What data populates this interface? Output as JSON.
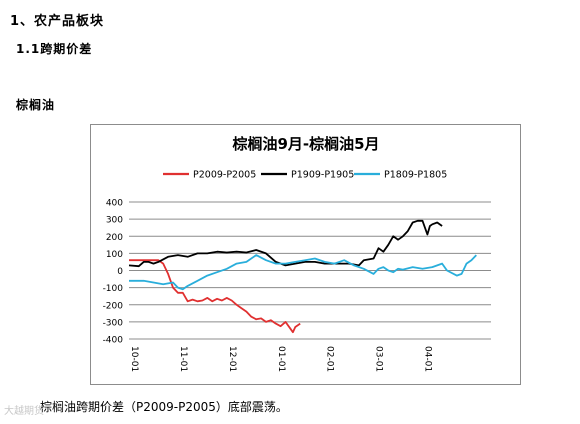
{
  "document": {
    "section_title": "1、农产品板块",
    "subsection_title": "1.1跨期价差",
    "product_heading": "棕榈油",
    "caption": "棕榈油跨期价差（P2009-P2005）底部震荡。",
    "watermark": "大越期货"
  },
  "chart_data": {
    "type": "line",
    "title": "棕榈油9月-棕榈油5月",
    "xlabel": "",
    "ylabel": "",
    "ylim": [
      -400,
      400
    ],
    "yticks": [
      400,
      300,
      200,
      100,
      0,
      -100,
      -200,
      -300,
      -400
    ],
    "x_range": [
      0,
      7.4
    ],
    "xtick_labels": [
      {
        "label": "10-01",
        "x": 0
      },
      {
        "label": "11-01",
        "x": 1
      },
      {
        "label": "12-01",
        "x": 2
      },
      {
        "label": "01-01",
        "x": 3
      },
      {
        "label": "02-01",
        "x": 4
      },
      {
        "label": "03-01",
        "x": 5
      },
      {
        "label": "04-01",
        "x": 6
      }
    ],
    "grid": true,
    "legend_position": "top",
    "series": [
      {
        "name": "P2009-P2005",
        "color": "#e03030",
        "points": [
          [
            0,
            60
          ],
          [
            0.3,
            60
          ],
          [
            0.6,
            60
          ],
          [
            0.7,
            40
          ],
          [
            0.8,
            -20
          ],
          [
            0.9,
            -100
          ],
          [
            1.0,
            -130
          ],
          [
            1.1,
            -130
          ],
          [
            1.2,
            -180
          ],
          [
            1.3,
            -170
          ],
          [
            1.4,
            -180
          ],
          [
            1.5,
            -175
          ],
          [
            1.6,
            -160
          ],
          [
            1.7,
            -180
          ],
          [
            1.8,
            -165
          ],
          [
            1.9,
            -175
          ],
          [
            2.0,
            -160
          ],
          [
            2.1,
            -175
          ],
          [
            2.2,
            -200
          ],
          [
            2.3,
            -220
          ],
          [
            2.4,
            -240
          ],
          [
            2.5,
            -270
          ],
          [
            2.6,
            -285
          ],
          [
            2.7,
            -280
          ],
          [
            2.8,
            -300
          ],
          [
            2.9,
            -290
          ],
          [
            3.0,
            -310
          ],
          [
            3.1,
            -325
          ],
          [
            3.2,
            -300
          ],
          [
            3.3,
            -340
          ],
          [
            3.35,
            -360
          ],
          [
            3.4,
            -330
          ],
          [
            3.5,
            -310
          ]
        ]
      },
      {
        "name": "P1909-P1905",
        "color": "#000000",
        "points": [
          [
            0,
            30
          ],
          [
            0.2,
            25
          ],
          [
            0.3,
            50
          ],
          [
            0.4,
            50
          ],
          [
            0.5,
            40
          ],
          [
            0.6,
            50
          ],
          [
            0.8,
            80
          ],
          [
            1.0,
            90
          ],
          [
            1.2,
            80
          ],
          [
            1.4,
            100
          ],
          [
            1.6,
            100
          ],
          [
            1.8,
            110
          ],
          [
            2.0,
            105
          ],
          [
            2.2,
            110
          ],
          [
            2.4,
            105
          ],
          [
            2.6,
            120
          ],
          [
            2.8,
            100
          ],
          [
            3.0,
            50
          ],
          [
            3.2,
            30
          ],
          [
            3.4,
            40
          ],
          [
            3.6,
            50
          ],
          [
            3.8,
            50
          ],
          [
            4.0,
            40
          ],
          [
            4.2,
            40
          ],
          [
            4.5,
            40
          ],
          [
            4.7,
            30
          ],
          [
            4.8,
            60
          ],
          [
            5.0,
            70
          ],
          [
            5.1,
            130
          ],
          [
            5.2,
            110
          ],
          [
            5.3,
            150
          ],
          [
            5.4,
            200
          ],
          [
            5.5,
            180
          ],
          [
            5.6,
            200
          ],
          [
            5.7,
            230
          ],
          [
            5.8,
            280
          ],
          [
            5.9,
            290
          ],
          [
            6.0,
            290
          ],
          [
            6.1,
            210
          ],
          [
            6.15,
            260
          ],
          [
            6.2,
            270
          ],
          [
            6.3,
            280
          ],
          [
            6.4,
            260
          ]
        ]
      },
      {
        "name": "P1809-P1805",
        "color": "#29aedb",
        "points": [
          [
            0,
            -60
          ],
          [
            0.3,
            -60
          ],
          [
            0.5,
            -70
          ],
          [
            0.7,
            -80
          ],
          [
            0.9,
            -70
          ],
          [
            1.0,
            -100
          ],
          [
            1.1,
            -110
          ],
          [
            1.2,
            -90
          ],
          [
            1.4,
            -60
          ],
          [
            1.6,
            -30
          ],
          [
            1.8,
            -10
          ],
          [
            2.0,
            10
          ],
          [
            2.2,
            40
          ],
          [
            2.4,
            50
          ],
          [
            2.6,
            90
          ],
          [
            2.8,
            60
          ],
          [
            3.0,
            40
          ],
          [
            3.2,
            40
          ],
          [
            3.4,
            50
          ],
          [
            3.6,
            60
          ],
          [
            3.8,
            70
          ],
          [
            4.0,
            50
          ],
          [
            4.2,
            40
          ],
          [
            4.4,
            60
          ],
          [
            4.6,
            30
          ],
          [
            4.8,
            10
          ],
          [
            5.0,
            -20
          ],
          [
            5.1,
            10
          ],
          [
            5.2,
            20
          ],
          [
            5.3,
            0
          ],
          [
            5.4,
            -10
          ],
          [
            5.5,
            10
          ],
          [
            5.6,
            5
          ],
          [
            5.8,
            20
          ],
          [
            6.0,
            10
          ],
          [
            6.2,
            20
          ],
          [
            6.4,
            40
          ],
          [
            6.5,
            0
          ],
          [
            6.7,
            -30
          ],
          [
            6.8,
            -20
          ],
          [
            6.9,
            40
          ],
          [
            7.0,
            60
          ],
          [
            7.1,
            90
          ]
        ]
      }
    ]
  }
}
